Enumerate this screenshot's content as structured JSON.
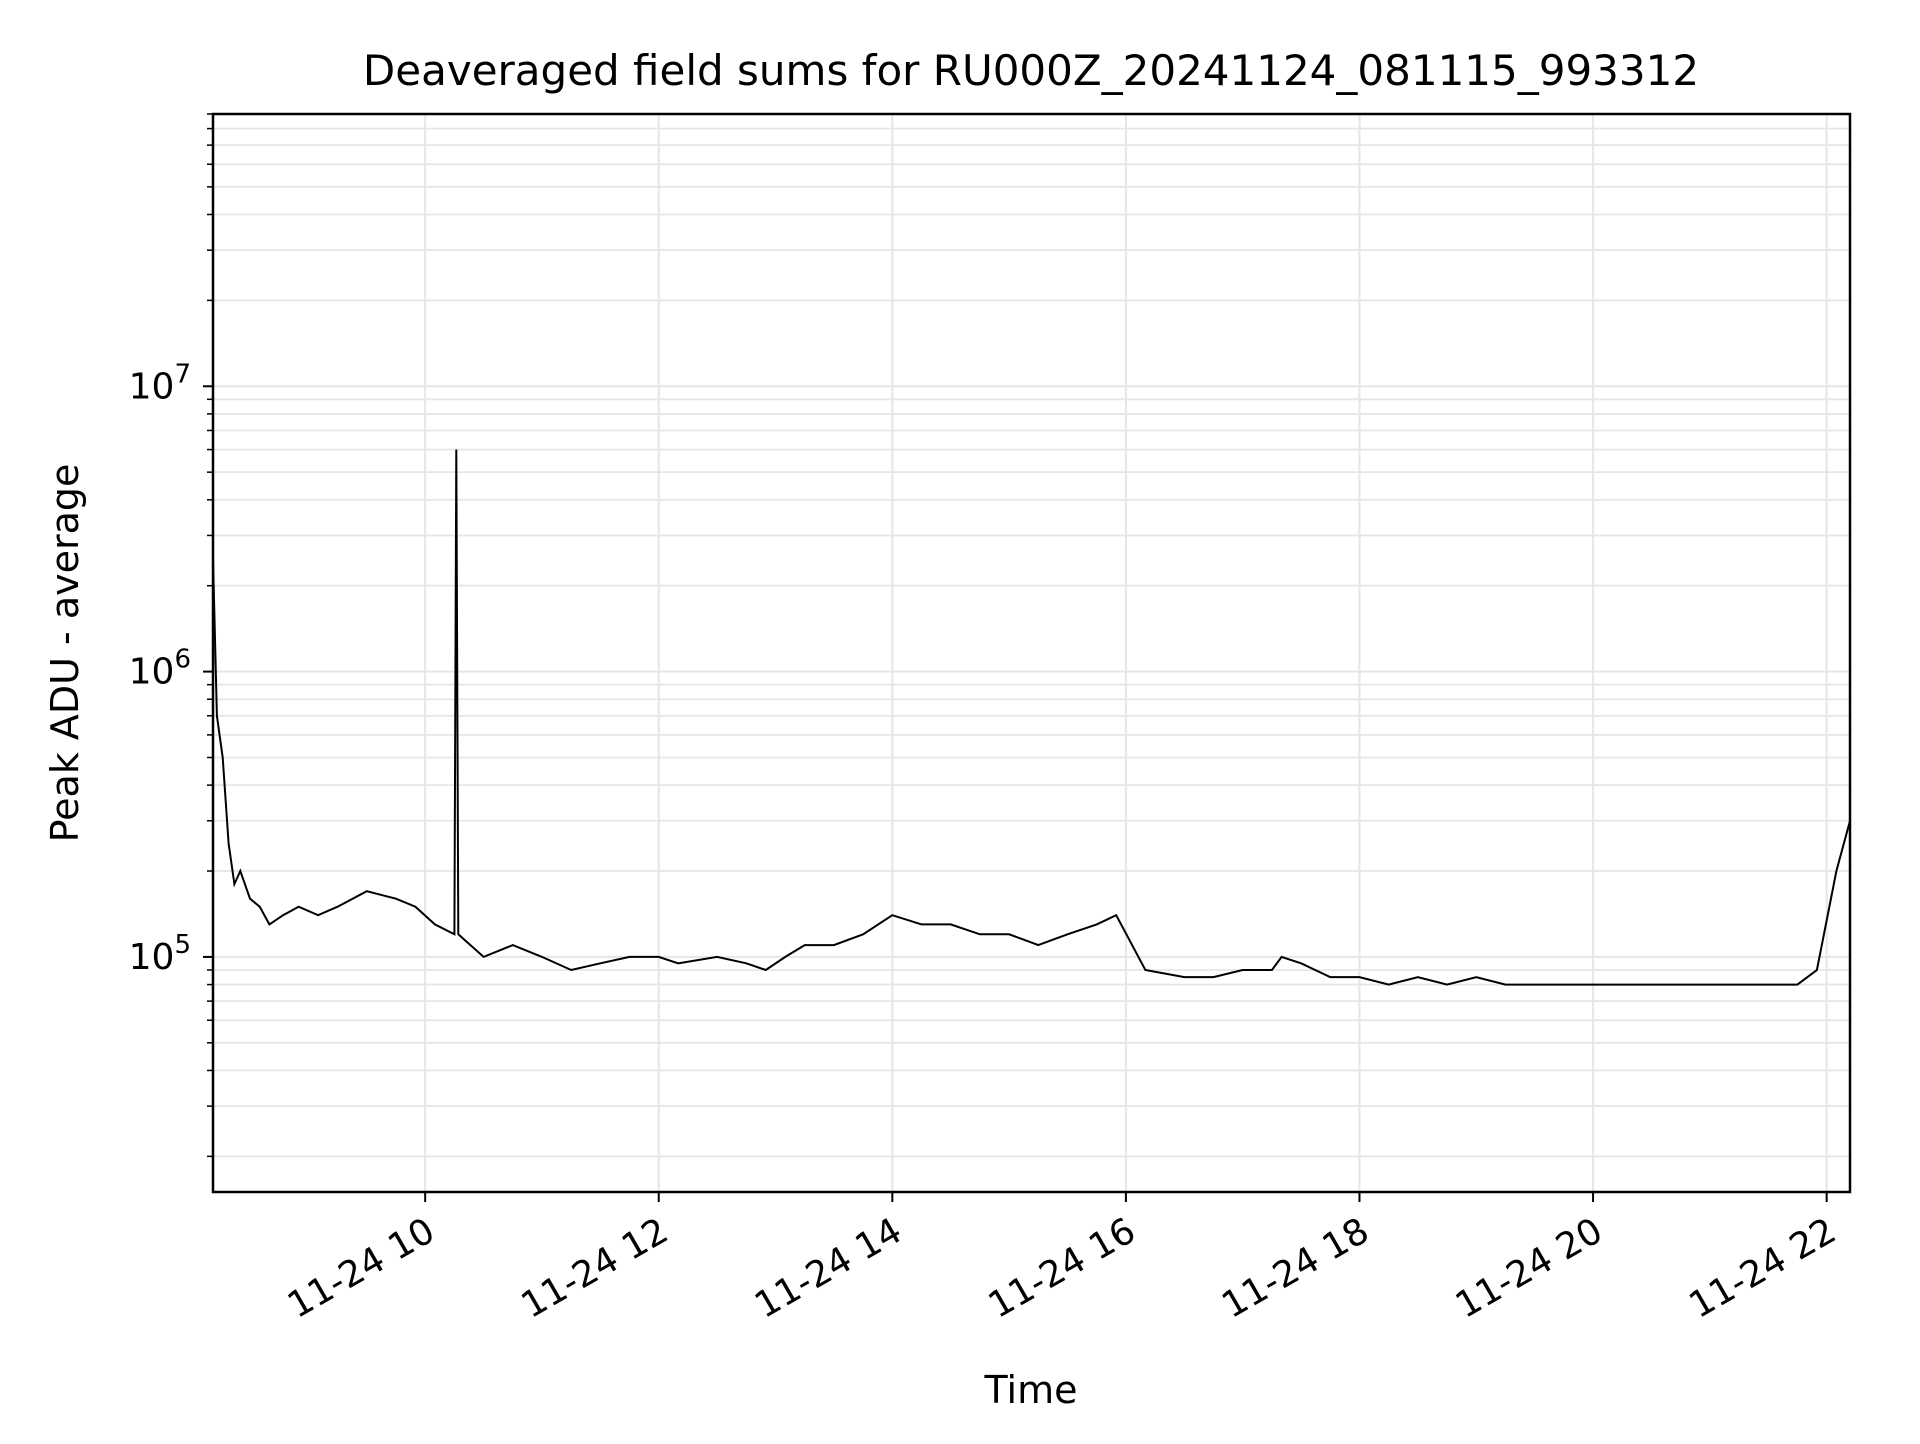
{
  "chart_data": {
    "type": "line",
    "title": "Deaveraged field sums for RU000Z_20241124_081115_993312",
    "xlabel": "Time",
    "ylabel": "Peak ADU - average",
    "y_scale": "log",
    "grid": "on (major and minor)",
    "xlim": [
      "2024-11-24 08:11",
      "2024-11-24 22:12"
    ],
    "ylim": [
      15000,
      90000000
    ],
    "xticks": [
      {
        "value": "2024-11-24 10:00",
        "label": "11-24 10"
      },
      {
        "value": "2024-11-24 12:00",
        "label": "11-24 12"
      },
      {
        "value": "2024-11-24 14:00",
        "label": "11-24 14"
      },
      {
        "value": "2024-11-24 16:00",
        "label": "11-24 16"
      },
      {
        "value": "2024-11-24 18:00",
        "label": "11-24 18"
      },
      {
        "value": "2024-11-24 20:00",
        "label": "11-24 20"
      },
      {
        "value": "2024-11-24 22:00",
        "label": "11-24 22"
      }
    ],
    "yticks": [
      {
        "value": 100000,
        "base": "10",
        "exp": "5"
      },
      {
        "value": 1000000,
        "base": "10",
        "exp": "6"
      },
      {
        "value": 10000000,
        "base": "10",
        "exp": "7"
      }
    ],
    "series": [
      {
        "color": "#000000",
        "x": [
          "2024-11-24 08:11",
          "2024-11-24 08:13",
          "2024-11-24 08:16",
          "2024-11-24 08:19",
          "2024-11-24 08:22",
          "2024-11-24 08:25",
          "2024-11-24 08:30",
          "2024-11-24 08:35",
          "2024-11-24 08:40",
          "2024-11-24 08:47",
          "2024-11-24 08:55",
          "2024-11-24 09:05",
          "2024-11-24 09:15",
          "2024-11-24 09:30",
          "2024-11-24 09:45",
          "2024-11-24 09:55",
          "2024-11-24 10:05",
          "2024-11-24 10:15",
          "2024-11-24 10:16",
          "2024-11-24 10:17",
          "2024-11-24 10:30",
          "2024-11-24 10:45",
          "2024-11-24 11:00",
          "2024-11-24 11:15",
          "2024-11-24 11:30",
          "2024-11-24 11:45",
          "2024-11-24 12:00",
          "2024-11-24 12:10",
          "2024-11-24 12:30",
          "2024-11-24 12:45",
          "2024-11-24 12:55",
          "2024-11-24 13:05",
          "2024-11-24 13:15",
          "2024-11-24 13:30",
          "2024-11-24 13:45",
          "2024-11-24 14:00",
          "2024-11-24 14:15",
          "2024-11-24 14:30",
          "2024-11-24 14:45",
          "2024-11-24 15:00",
          "2024-11-24 15:15",
          "2024-11-24 15:30",
          "2024-11-24 15:45",
          "2024-11-24 15:55",
          "2024-11-24 16:10",
          "2024-11-24 16:30",
          "2024-11-24 16:45",
          "2024-11-24 17:00",
          "2024-11-24 17:15",
          "2024-11-24 17:20",
          "2024-11-24 17:30",
          "2024-11-24 17:45",
          "2024-11-24 18:00",
          "2024-11-24 18:15",
          "2024-11-24 18:30",
          "2024-11-24 18:45",
          "2024-11-24 19:00",
          "2024-11-24 19:15",
          "2024-11-24 19:30",
          "2024-11-24 19:45",
          "2024-11-24 20:00",
          "2024-11-24 20:15",
          "2024-11-24 20:30",
          "2024-11-24 20:45",
          "2024-11-24 20:50",
          "2024-11-24 21:00",
          "2024-11-24 21:15",
          "2024-11-24 21:30",
          "2024-11-24 21:45",
          "2024-11-24 21:55",
          "2024-11-24 22:05",
          "2024-11-24 22:12"
        ],
        "y": [
          2500000,
          700000,
          500000,
          250000,
          180000,
          200000,
          160000,
          150000,
          130000,
          140000,
          150000,
          140000,
          150000,
          170000,
          160000,
          150000,
          130000,
          120000,
          6000000,
          120000,
          100000,
          110000,
          100000,
          90000,
          95000,
          100000,
          100000,
          95000,
          100000,
          95000,
          90000,
          100000,
          110000,
          110000,
          120000,
          140000,
          130000,
          130000,
          120000,
          120000,
          110000,
          120000,
          130000,
          140000,
          90000,
          85000,
          85000,
          90000,
          90000,
          100000,
          95000,
          85000,
          85000,
          80000,
          85000,
          80000,
          85000,
          80000,
          80000,
          80000,
          80000,
          80000,
          80000,
          80000,
          80000,
          80000,
          80000,
          80000,
          80000,
          90000,
          200000,
          300000
        ]
      }
    ]
  }
}
